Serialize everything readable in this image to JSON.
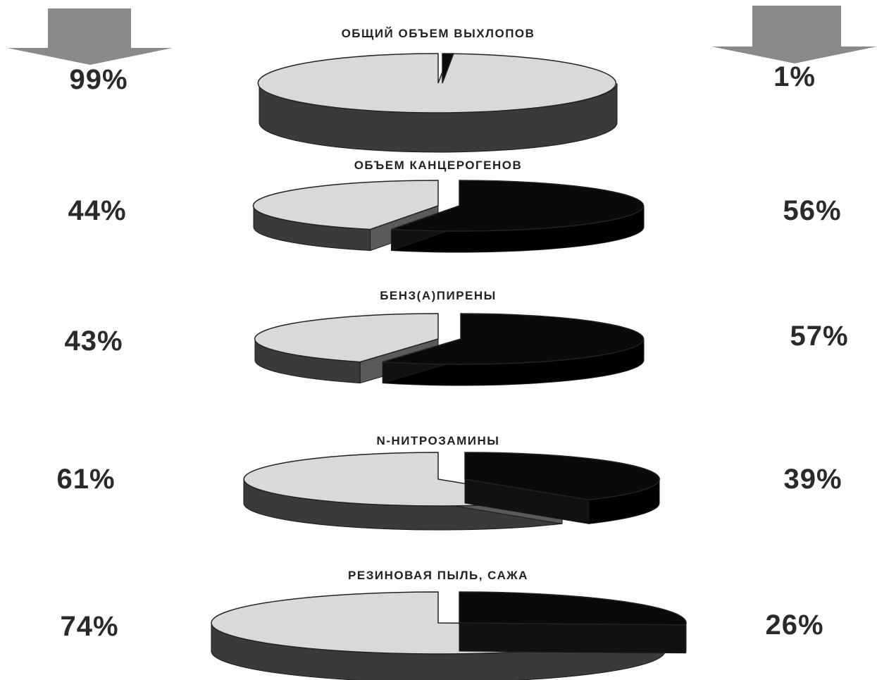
{
  "chart_data": [
    {
      "type": "pie",
      "title": "ОБЩИЙ ОБЪЕМ ВЫХЛОПОВ",
      "categories": [
        "left",
        "right"
      ],
      "values": [
        99,
        1
      ],
      "labels": [
        "99%",
        "1%"
      ]
    },
    {
      "type": "pie",
      "title": "ОБЪЕМ КАНЦЕРОГЕНОВ",
      "categories": [
        "left",
        "right"
      ],
      "values": [
        44,
        56
      ],
      "labels": [
        "44%",
        "56%"
      ]
    },
    {
      "type": "pie",
      "title": "БЕНЗ(А)ПИРЕНЫ",
      "categories": [
        "left",
        "right"
      ],
      "values": [
        43,
        57
      ],
      "labels": [
        "43%",
        "57%"
      ]
    },
    {
      "type": "pie",
      "title": "N-НИТРОЗАМИНЫ",
      "categories": [
        "left",
        "right"
      ],
      "values": [
        61,
        39
      ],
      "labels": [
        "61%",
        "39%"
      ]
    },
    {
      "type": "pie",
      "title": "РЕЗИНОВАЯ ПЫЛЬ, САЖА",
      "categories": [
        "left",
        "right"
      ],
      "values": [
        74,
        26
      ],
      "labels": [
        "74%",
        "26%"
      ]
    }
  ],
  "colors": {
    "left_top": "#d9d9d9",
    "left_side": "#3a3a3a",
    "right_top": "#0a0a0a",
    "right_side": "#000000",
    "arrow": "#8a8a8a",
    "text": "#2a2a2a"
  },
  "icons": [
    "left-down-arrow-icon",
    "right-down-arrow-icon"
  ]
}
